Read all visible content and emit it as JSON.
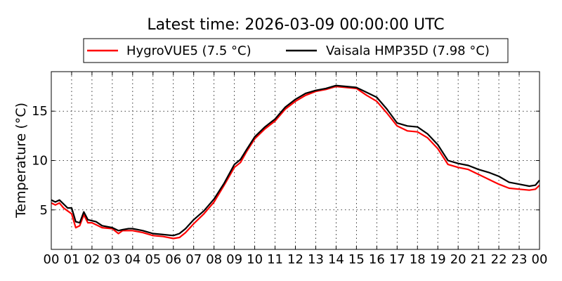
{
  "chart_data": {
    "type": "line",
    "title": "Latest time: 2026-03-09 00:00:00 UTC",
    "xlabel": "",
    "ylabel": "Temperature (°C)",
    "xlim": [
      0,
      24
    ],
    "ylim": [
      1,
      19
    ],
    "grid": true,
    "legend_position": "top-center",
    "xticks": [
      0,
      1,
      2,
      3,
      4,
      5,
      6,
      7,
      8,
      9,
      10,
      11,
      12,
      13,
      14,
      15,
      16,
      17,
      18,
      19,
      20,
      21,
      22,
      23,
      24
    ],
    "xtick_labels": [
      "00",
      "01",
      "02",
      "03",
      "04",
      "05",
      "06",
      "07",
      "08",
      "09",
      "10",
      "11",
      "12",
      "13",
      "14",
      "15",
      "16",
      "17",
      "18",
      "19",
      "20",
      "21",
      "22",
      "23",
      "00"
    ],
    "yticks": [
      5,
      10,
      15
    ],
    "ytick_labels": [
      "5",
      "10",
      "15"
    ],
    "series": [
      {
        "name": "HygroVUE5 (7.5 °C)",
        "color": "#ff0000",
        "x": [
          0,
          0.2,
          0.4,
          0.6,
          0.8,
          1.0,
          1.2,
          1.4,
          1.6,
          1.8,
          2.0,
          2.2,
          2.5,
          3.0,
          3.3,
          3.5,
          3.8,
          4.0,
          4.5,
          5.0,
          5.5,
          6.0,
          6.3,
          6.6,
          7.0,
          7.5,
          8.0,
          8.5,
          9.0,
          9.3,
          9.6,
          10.0,
          10.5,
          11.0,
          11.5,
          12.0,
          12.5,
          13.0,
          13.5,
          14.0,
          14.5,
          15.0,
          15.5,
          16.0,
          16.5,
          17.0,
          17.5,
          18.0,
          18.5,
          19.0,
          19.5,
          20.0,
          20.5,
          21.0,
          21.5,
          22.0,
          22.5,
          23.0,
          23.5,
          23.8,
          24.0
        ],
        "y": [
          5.7,
          5.5,
          5.7,
          5.2,
          4.9,
          4.6,
          3.2,
          3.4,
          4.5,
          3.7,
          3.7,
          3.5,
          3.2,
          3.1,
          2.6,
          2.9,
          2.9,
          2.9,
          2.7,
          2.4,
          2.3,
          2.1,
          2.2,
          2.7,
          3.6,
          4.6,
          5.8,
          7.5,
          9.3,
          9.8,
          10.9,
          12.2,
          13.2,
          14.0,
          15.2,
          16.0,
          16.6,
          17.0,
          17.2,
          17.5,
          17.4,
          17.3,
          16.6,
          16.0,
          14.8,
          13.5,
          13.0,
          12.9,
          12.3,
          11.2,
          9.6,
          9.3,
          9.1,
          8.6,
          8.1,
          7.6,
          7.2,
          7.1,
          7.0,
          7.1,
          7.5
        ]
      },
      {
        "name": "Vaisala HMP35D (7.98 °C)",
        "color": "#000000",
        "x": [
          0,
          0.2,
          0.4,
          0.6,
          0.8,
          1.0,
          1.2,
          1.4,
          1.6,
          1.8,
          2.0,
          2.2,
          2.5,
          3.0,
          3.3,
          3.5,
          3.8,
          4.0,
          4.5,
          5.0,
          5.5,
          6.0,
          6.3,
          6.6,
          7.0,
          7.5,
          8.0,
          8.5,
          9.0,
          9.3,
          9.6,
          10.0,
          10.5,
          11.0,
          11.5,
          12.0,
          12.5,
          13.0,
          13.5,
          14.0,
          14.5,
          15.0,
          15.5,
          16.0,
          16.5,
          17.0,
          17.5,
          18.0,
          18.5,
          19.0,
          19.5,
          20.0,
          20.5,
          21.0,
          21.5,
          22.0,
          22.5,
          23.0,
          23.5,
          23.8,
          24.0
        ],
        "y": [
          6.0,
          5.8,
          6.0,
          5.6,
          5.2,
          5.2,
          3.8,
          3.7,
          4.8,
          4.0,
          3.9,
          3.8,
          3.4,
          3.2,
          2.9,
          3.0,
          3.1,
          3.1,
          2.9,
          2.6,
          2.5,
          2.4,
          2.6,
          3.1,
          4.0,
          4.9,
          6.1,
          7.7,
          9.6,
          10.1,
          11.1,
          12.4,
          13.4,
          14.2,
          15.4,
          16.2,
          16.8,
          17.1,
          17.3,
          17.6,
          17.5,
          17.4,
          16.9,
          16.4,
          15.2,
          13.8,
          13.5,
          13.4,
          12.7,
          11.6,
          10.0,
          9.7,
          9.5,
          9.1,
          8.8,
          8.4,
          7.8,
          7.6,
          7.4,
          7.5,
          8.0
        ]
      }
    ]
  }
}
